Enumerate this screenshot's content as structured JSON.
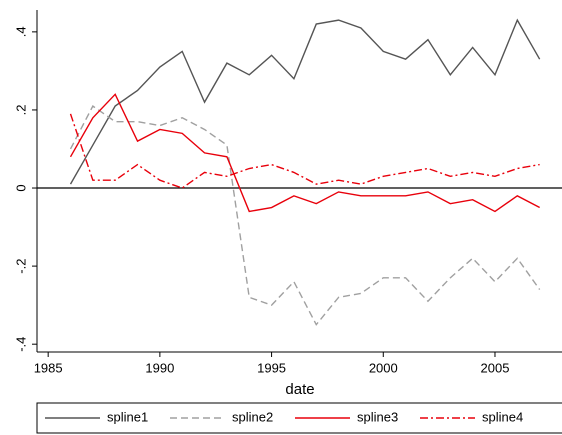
{
  "chart_data": {
    "type": "line",
    "x_label": "date",
    "x": [
      1986,
      1987,
      1988,
      1989,
      1990,
      1991,
      1992,
      1993,
      1994,
      1995,
      1996,
      1997,
      1998,
      1999,
      2000,
      2001,
      2002,
      2003,
      2004,
      2005,
      2006,
      2007
    ],
    "series": [
      {
        "name": "spline1",
        "color": "#555555",
        "dash": "solid",
        "values": [
          0.01,
          0.11,
          0.21,
          0.25,
          0.31,
          0.35,
          0.22,
          0.32,
          0.29,
          0.34,
          0.28,
          0.42,
          0.43,
          0.41,
          0.35,
          0.33,
          0.38,
          0.29,
          0.36,
          0.29,
          0.43,
          0.33
        ]
      },
      {
        "name": "spline2",
        "color": "#a0a0a0",
        "dash": "dash",
        "values": [
          0.1,
          0.21,
          0.17,
          0.17,
          0.16,
          0.18,
          0.15,
          0.11,
          -0.28,
          -0.3,
          -0.24,
          -0.35,
          -0.28,
          -0.27,
          -0.23,
          -0.23,
          -0.29,
          -0.23,
          -0.18,
          -0.24,
          -0.18,
          -0.26
        ]
      },
      {
        "name": "spline3",
        "color": "#e8000b",
        "dash": "solid",
        "values": [
          0.08,
          0.18,
          0.24,
          0.12,
          0.15,
          0.14,
          0.09,
          0.08,
          -0.06,
          -0.05,
          -0.02,
          -0.04,
          -0.01,
          -0.02,
          -0.02,
          -0.02,
          -0.01,
          -0.04,
          -0.03,
          -0.06,
          -0.02,
          -0.05
        ]
      },
      {
        "name": "spline4",
        "color": "#e8000b",
        "dash": "dashdot",
        "values": [
          0.19,
          0.02,
          0.02,
          0.06,
          0.02,
          0.0,
          0.04,
          0.03,
          0.05,
          0.06,
          0.04,
          0.01,
          0.02,
          0.01,
          0.03,
          0.04,
          0.05,
          0.03,
          0.04,
          0.03,
          0.05,
          0.06
        ]
      }
    ],
    "xlim": [
      1984.5,
      2008
    ],
    "ylim": [
      -0.42,
      0.456
    ],
    "xticks": [
      1985,
      1990,
      1995,
      2000,
      2005
    ],
    "yticks": [
      {
        "value": -0.4,
        "label": "-.4"
      },
      {
        "value": -0.2,
        "label": "-.2"
      },
      0,
      {
        "value": 0.2,
        "label": ".2"
      },
      {
        "value": 0.4,
        "label": ".4"
      }
    ],
    "yline": 0,
    "legend": "bottom"
  }
}
